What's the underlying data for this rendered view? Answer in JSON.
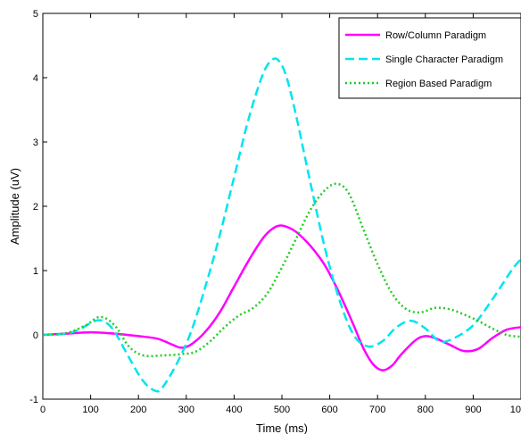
{
  "chart_data": {
    "type": "line",
    "xlabel": "Time (ms)",
    "ylabel": "Amplitude (uV)",
    "xlim": [
      0,
      1000
    ],
    "ylim": [
      -1,
      5
    ],
    "x_ticks": [
      "0",
      "100",
      "200",
      "300",
      "400",
      "500",
      "600",
      "700",
      "800",
      "900",
      "1000"
    ],
    "y_ticks": [
      "-1",
      "0",
      "1",
      "2",
      "3",
      "4",
      "5"
    ],
    "grid": false,
    "legend_position": "top-right",
    "series": [
      {
        "name": "Row/Column Paradigm",
        "color": "#ff00ff",
        "dash": "solid",
        "x": [
          0,
          50,
          100,
          150,
          200,
          240,
          270,
          290,
          310,
          340,
          370,
          400,
          430,
          460,
          480,
          495,
          510,
          530,
          560,
          590,
          620,
          650,
          670,
          690,
          710,
          730,
          750,
          780,
          800,
          820,
          850,
          880,
          910,
          940,
          970,
          1000
        ],
        "y": [
          0.0,
          0.02,
          0.04,
          0.02,
          -0.02,
          -0.06,
          -0.15,
          -0.2,
          -0.15,
          0.05,
          0.35,
          0.75,
          1.15,
          1.5,
          1.65,
          1.7,
          1.68,
          1.6,
          1.38,
          1.08,
          0.65,
          0.15,
          -0.2,
          -0.45,
          -0.55,
          -0.48,
          -0.3,
          -0.08,
          -0.02,
          -0.05,
          -0.15,
          -0.25,
          -0.22,
          -0.05,
          0.08,
          0.12
        ]
      },
      {
        "name": "Single Character Paradigm",
        "color": "#00e5ee",
        "dash": "dashed",
        "x": [
          0,
          50,
          80,
          110,
          130,
          150,
          180,
          210,
          235,
          250,
          280,
          310,
          340,
          370,
          400,
          430,
          460,
          480,
          495,
          510,
          530,
          560,
          590,
          620,
          650,
          680,
          710,
          740,
          770,
          800,
          830,
          860,
          900,
          940,
          980,
          1000
        ],
        "y": [
          0.0,
          0.02,
          0.1,
          0.22,
          0.2,
          0.05,
          -0.35,
          -0.72,
          -0.87,
          -0.82,
          -0.45,
          0.05,
          0.75,
          1.55,
          2.45,
          3.35,
          4.05,
          4.28,
          4.25,
          4.0,
          3.4,
          2.35,
          1.35,
          0.55,
          0.0,
          -0.18,
          -0.1,
          0.12,
          0.22,
          0.1,
          -0.1,
          -0.05,
          0.15,
          0.55,
          1.0,
          1.18
        ]
      },
      {
        "name": "Region Based Paradigm",
        "color": "#22cc22",
        "dash": "dotted",
        "x": [
          0,
          50,
          90,
          120,
          150,
          180,
          210,
          250,
          290,
          320,
          350,
          380,
          410,
          440,
          470,
          500,
          530,
          560,
          590,
          615,
          640,
          670,
          700,
          730,
          760,
          790,
          820,
          850,
          880,
          910,
          940,
          970,
          1000
        ],
        "y": [
          0.0,
          0.03,
          0.15,
          0.28,
          0.15,
          -0.18,
          -0.32,
          -0.32,
          -0.3,
          -0.26,
          -0.1,
          0.12,
          0.3,
          0.42,
          0.65,
          1.05,
          1.5,
          1.95,
          2.25,
          2.35,
          2.2,
          1.65,
          1.1,
          0.65,
          0.4,
          0.35,
          0.42,
          0.4,
          0.32,
          0.22,
          0.1,
          0.0,
          -0.03
        ]
      }
    ]
  }
}
